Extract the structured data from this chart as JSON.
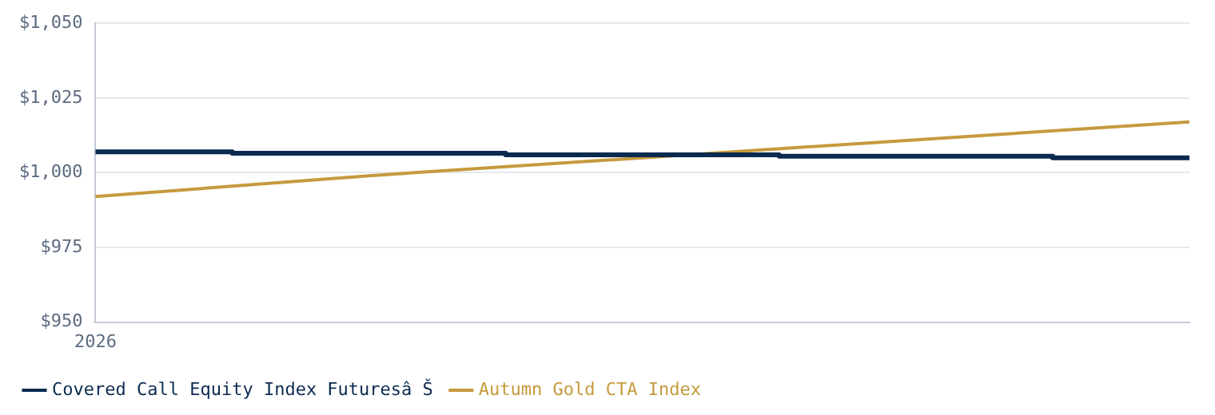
{
  "chart_data": {
    "type": "line",
    "categories": [
      "2026",
      null,
      null,
      null,
      null
    ],
    "series": [
      {
        "name": "Covered Call Equity Index Futuresâ Š",
        "type": "step",
        "color": "#0b2a50",
        "values": [
          1007,
          1006.5,
          1006,
          1005.5,
          1005
        ]
      },
      {
        "name": "Autumn Gold CTA Index",
        "type": "line",
        "color": "#c59a3d",
        "values": [
          992,
          999,
          1005,
          1011,
          1017
        ]
      }
    ],
    "ylim": [
      950,
      1050
    ],
    "yticks": [
      {
        "value": 950,
        "label": "$950"
      },
      {
        "value": 975,
        "label": "$975"
      },
      {
        "value": 1000,
        "label": "$1,000"
      },
      {
        "value": 1025,
        "label": "$1,025"
      },
      {
        "value": 1050,
        "label": "$1,050"
      }
    ],
    "grid": "y",
    "legend": "bottom",
    "marker": "none"
  }
}
